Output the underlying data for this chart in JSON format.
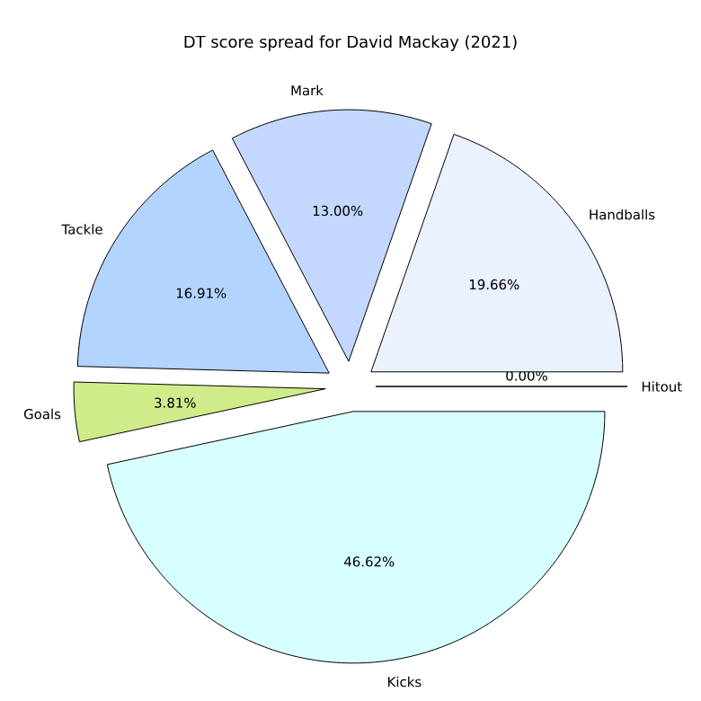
{
  "chart_data": {
    "type": "pie",
    "title": "DT score spread for David Mackay (2021)",
    "categories": [
      "Hitout",
      "Handballs",
      "Mark",
      "Tackle",
      "Goals",
      "Kicks"
    ],
    "values": [
      0.0,
      19.66,
      13.0,
      16.91,
      3.81,
      46.62
    ],
    "value_labels": [
      "0.00%",
      "19.66%",
      "13.00%",
      "16.91%",
      "3.81%",
      "46.62%"
    ],
    "colors": [
      "#eaf1ff",
      "#eaf1ff",
      "#c4d7ff",
      "#b3d4ff",
      "#d0ec8a",
      "#d8ffff"
    ]
  }
}
